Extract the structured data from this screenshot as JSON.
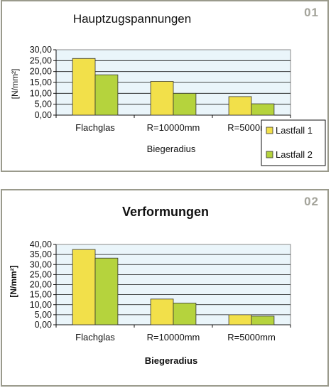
{
  "chart_data": [
    {
      "panel_number": "01",
      "type": "bar",
      "title": "Hauptzugspannungen",
      "xlabel": "Biegeradius",
      "ylabel": "[N/mm²]",
      "categories": [
        "Flachglas",
        "R=10000mm",
        "R=5000mm"
      ],
      "series": [
        {
          "name": "Lastfall 1",
          "values": [
            26.0,
            15.5,
            8.5
          ],
          "color": "#f2e04a"
        },
        {
          "name": "Lastfall 2",
          "values": [
            18.5,
            10.0,
            5.2
          ],
          "color": "#b5d33d"
        }
      ],
      "ylim": [
        0,
        30
      ],
      "yticks": [
        "0,00",
        "5,00",
        "10,00",
        "15,00",
        "20,00",
        "25,00",
        "30,00"
      ],
      "grid": true,
      "legend": "bottom-right",
      "plot_bg": "#eaf5fa"
    },
    {
      "panel_number": "02",
      "type": "bar",
      "title": "Verformungen",
      "xlabel": "Biegeradius",
      "ylabel": "[N/mm²]",
      "categories": [
        "Flachglas",
        "R=10000mm",
        "R=5000mm"
      ],
      "series": [
        {
          "values": [
            37.5,
            12.8,
            5.0
          ],
          "color": "#f2e04a"
        },
        {
          "values": [
            33.2,
            10.8,
            4.3
          ],
          "color": "#b5d33d"
        }
      ],
      "ylim": [
        0,
        40
      ],
      "yticks": [
        "0,00",
        "5,00",
        "10,00",
        "15,00",
        "20,00",
        "25,00",
        "30,00",
        "35,00",
        "40,00"
      ],
      "grid": true,
      "legend": "none",
      "plot_bg": "#eaf5fa"
    }
  ]
}
